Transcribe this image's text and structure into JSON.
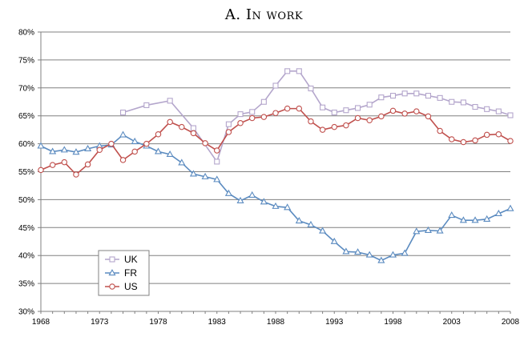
{
  "chart_data": {
    "type": "line",
    "title": "A. In work",
    "xlabel": "",
    "ylabel": "",
    "xlim": [
      1968,
      2008
    ],
    "ylim": [
      30,
      80
    ],
    "x_ticks": [
      "1968",
      "1973",
      "1978",
      "1983",
      "1988",
      "1993",
      "1998",
      "2003",
      "2008"
    ],
    "y_ticks": [
      "30%",
      "35%",
      "40%",
      "45%",
      "50%",
      "55%",
      "60%",
      "65%",
      "70%",
      "75%",
      "80%"
    ],
    "grid": "horizontal",
    "legend_position": "bottom-left",
    "series": [
      {
        "name": "UK",
        "color": "#b4a6cc",
        "marker": "square",
        "x": [
          1975,
          1977,
          1979,
          1981,
          1983,
          1984,
          1985,
          1986,
          1987,
          1988,
          1989,
          1990,
          1991,
          1992,
          1993,
          1994,
          1995,
          1996,
          1997,
          1998,
          1999,
          2000,
          2001,
          2002,
          2003,
          2004,
          2005,
          2006,
          2007,
          2008
        ],
        "values": [
          65.6,
          66.9,
          67.7,
          62.8,
          56.8,
          63.5,
          65.3,
          65.7,
          67.5,
          70.4,
          73.0,
          73.0,
          69.9,
          66.5,
          65.6,
          66.0,
          66.4,
          67.0,
          68.3,
          68.6,
          69.0,
          69.0,
          68.6,
          68.2,
          67.5,
          67.4,
          66.6,
          66.2,
          65.8,
          65.1
        ]
      },
      {
        "name": "FR",
        "color": "#5b8bc0",
        "marker": "triangle",
        "x": [
          1968,
          1969,
          1970,
          1971,
          1972,
          1973,
          1974,
          1975,
          1976,
          1977,
          1978,
          1979,
          1980,
          1981,
          1982,
          1983,
          1984,
          1985,
          1986,
          1987,
          1988,
          1989,
          1990,
          1991,
          1992,
          1993,
          1994,
          1995,
          1996,
          1997,
          1998,
          1999,
          2000,
          2001,
          2002,
          2003,
          2004,
          2005,
          2006,
          2007,
          2008
        ],
        "values": [
          59.6,
          58.6,
          58.9,
          58.5,
          59.1,
          59.6,
          59.8,
          61.6,
          60.4,
          59.6,
          58.6,
          58.1,
          56.6,
          54.6,
          54.1,
          53.6,
          51.1,
          49.8,
          50.8,
          49.6,
          48.8,
          48.6,
          46.2,
          45.5,
          44.4,
          42.5,
          40.7,
          40.6,
          40.1,
          39.1,
          40.1,
          40.4,
          44.3,
          44.5,
          44.4,
          47.2,
          46.3,
          46.3,
          46.5,
          47.5,
          48.4
        ]
      },
      {
        "name": "US",
        "color": "#c0504d",
        "marker": "circle",
        "x": [
          1968,
          1969,
          1970,
          1971,
          1972,
          1973,
          1974,
          1975,
          1976,
          1977,
          1978,
          1979,
          1980,
          1981,
          1982,
          1983,
          1984,
          1985,
          1986,
          1987,
          1988,
          1989,
          1990,
          1991,
          1992,
          1993,
          1994,
          1995,
          1996,
          1997,
          1998,
          1999,
          2000,
          2001,
          2002,
          2003,
          2004,
          2005,
          2006,
          2007,
          2008
        ],
        "values": [
          55.3,
          56.2,
          56.7,
          54.5,
          56.3,
          58.9,
          60.0,
          57.1,
          58.6,
          60.0,
          61.7,
          63.9,
          63.0,
          61.9,
          60.1,
          58.8,
          62.1,
          63.7,
          64.6,
          64.8,
          65.5,
          66.3,
          66.3,
          64.0,
          62.5,
          63.0,
          63.3,
          64.6,
          64.2,
          64.9,
          65.9,
          65.4,
          65.8,
          64.9,
          62.3,
          60.8,
          60.3,
          60.6,
          61.6,
          61.7,
          60.5
        ]
      }
    ]
  }
}
